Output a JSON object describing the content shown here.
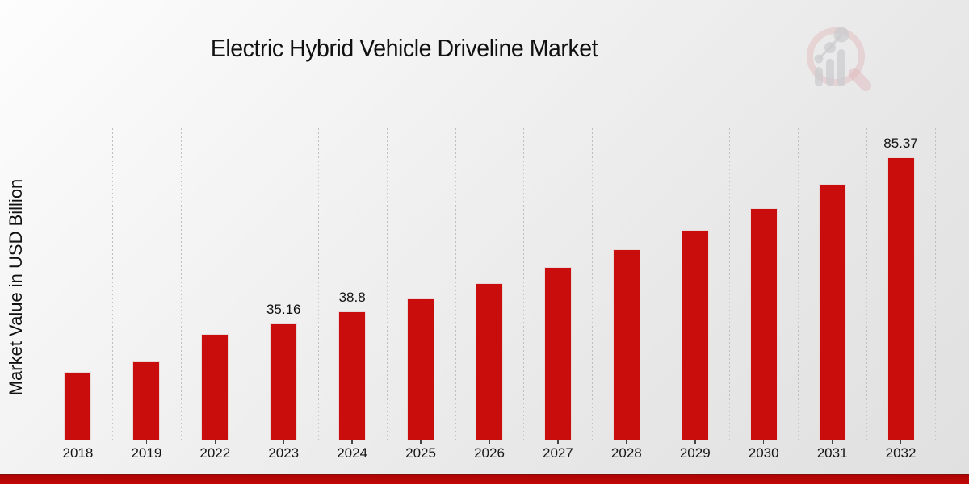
{
  "page": {
    "title": "Electric Hybrid Vehicle Driveline Market"
  },
  "logo": {
    "name": "market-research-future-watermark",
    "ring_color": "#d98b93",
    "bars_color": "#b4b4b9"
  },
  "colors": {
    "bar": "#c90d0d",
    "bottom_band": "#b50505",
    "background_start": "#fdfdfd",
    "background_end": "#e0e0e0",
    "gridline": "#bfbfbf",
    "text": "#111111"
  },
  "chart_data": {
    "type": "bar",
    "title": "Electric Hybrid Vehicle Driveline Market",
    "xlabel": "",
    "ylabel": "Market Value in USD Billion",
    "categories": [
      "2018",
      "2019",
      "2022",
      "2023",
      "2024",
      "2025",
      "2026",
      "2027",
      "2028",
      "2029",
      "2030",
      "2031",
      "2032"
    ],
    "values": [
      20.5,
      23.7,
      31.86,
      35.16,
      38.8,
      42.82,
      47.25,
      52.15,
      57.55,
      63.51,
      70.09,
      77.35,
      85.37
    ],
    "point_labels": [
      "",
      "",
      "",
      "35.16",
      "38.8",
      "",
      "",
      "",
      "",
      "",
      "",
      "",
      "85.37"
    ],
    "ylim": [
      0,
      94.2
    ],
    "grid": "vertical-dotted",
    "legend": "none",
    "bar_color": "#c90d0d"
  }
}
